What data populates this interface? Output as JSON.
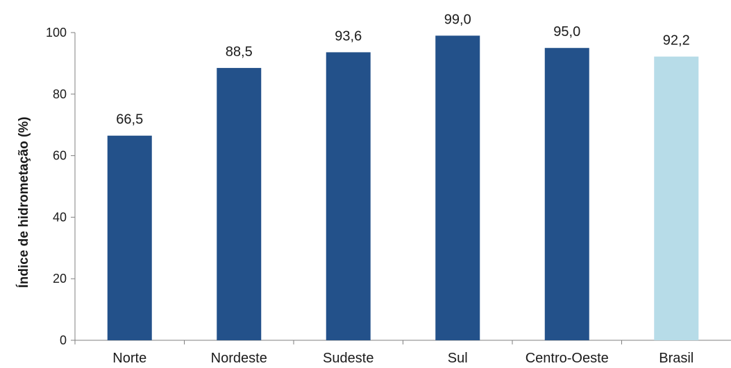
{
  "chart_data": {
    "type": "bar",
    "title": "",
    "xlabel": "",
    "ylabel": "Índice de hidrometação (%)",
    "ylim": [
      0,
      100
    ],
    "yticks": [
      0,
      20,
      40,
      60,
      80,
      100
    ],
    "grid": false,
    "categories": [
      "Norte",
      "Nordeste",
      "Sudeste",
      "Sul",
      "Centro-Oeste",
      "Brasil"
    ],
    "values": [
      66.5,
      88.5,
      93.6,
      99.0,
      95.0,
      92.2
    ],
    "value_labels": [
      "66,5",
      "88,5",
      "93,6",
      "99,0",
      "95,0",
      "92,2"
    ],
    "colors": {
      "regions": "#23518a",
      "national": "#b7dce8",
      "axis": "#7f7f7f"
    },
    "highlight_category": "Brasil"
  }
}
